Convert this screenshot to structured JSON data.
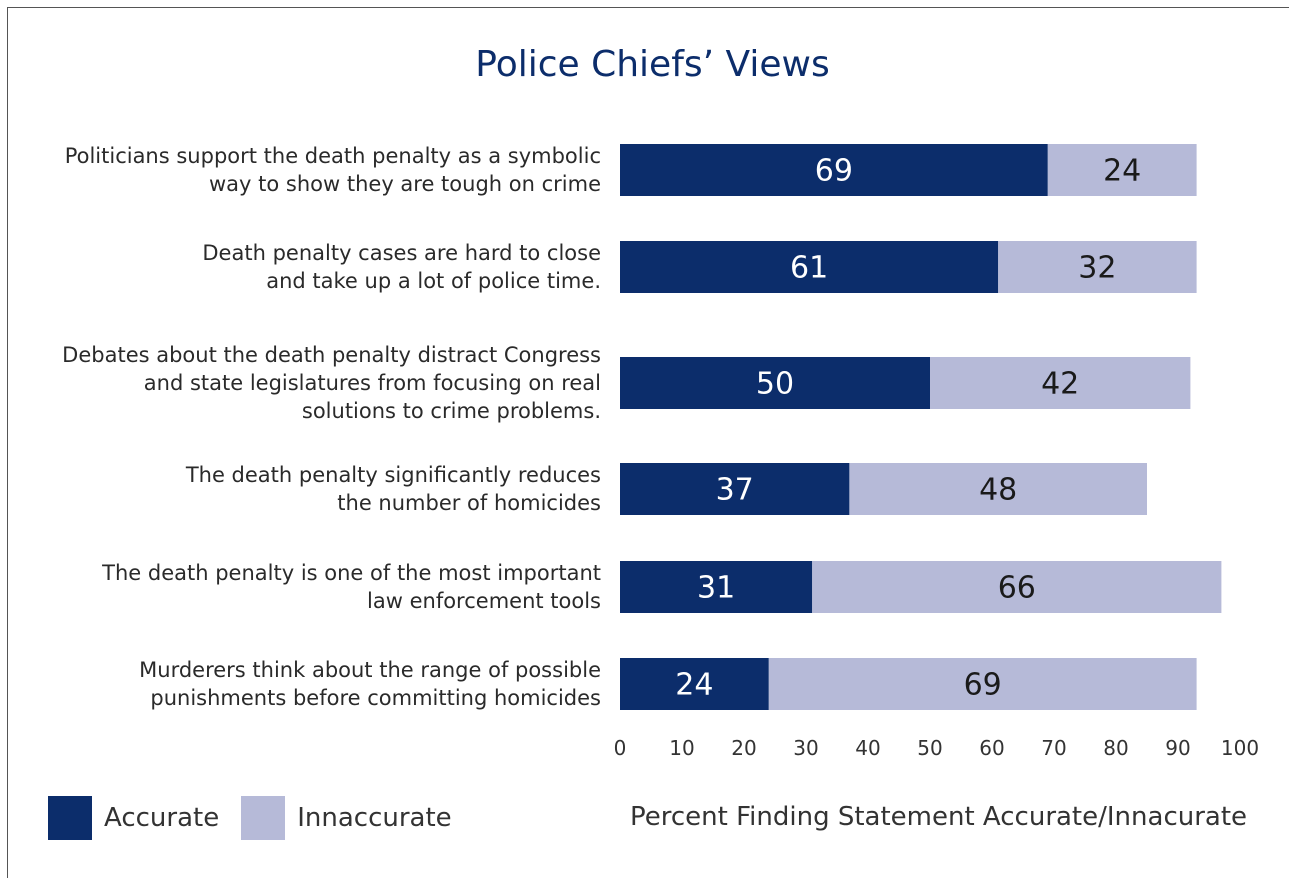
{
  "chart_data": {
    "type": "bar",
    "stacked": true,
    "orientation": "horizontal",
    "title": "Police Chiefs’ Views",
    "xlabel": "Percent Finding Statement Accurate/Innacurate",
    "xlim": [
      0,
      100
    ],
    "xticks": [
      0,
      10,
      20,
      30,
      40,
      50,
      60,
      70,
      80,
      90,
      100
    ],
    "grid": false,
    "legend_position": "bottom-left",
    "categories": [
      [
        "Politicians support the death penalty as a symbolic",
        "way to show they are tough on crime"
      ],
      [
        "Death penalty cases are hard to close",
        "and take up a lot of police time."
      ],
      [
        "Debates about the death penalty distract Congress",
        "and state legislatures from focusing on real",
        "solutions to crime problems."
      ],
      [
        "The death penalty significantly reduces",
        "the number of homicides"
      ],
      [
        "The death penalty is one of the most important",
        "law enforcement tools"
      ],
      [
        "Murderers think about the range of possible",
        "punishments before committing homicides"
      ]
    ],
    "series": [
      {
        "name": "Accurate",
        "color": "#0c2d6b",
        "text_color": "#ffffff",
        "values": [
          69,
          61,
          50,
          37,
          31,
          24
        ]
      },
      {
        "name": "Innaccurate",
        "color": "#b6bad8",
        "text_color": "#1a1a1a",
        "values": [
          24,
          32,
          42,
          48,
          66,
          69
        ]
      }
    ]
  }
}
